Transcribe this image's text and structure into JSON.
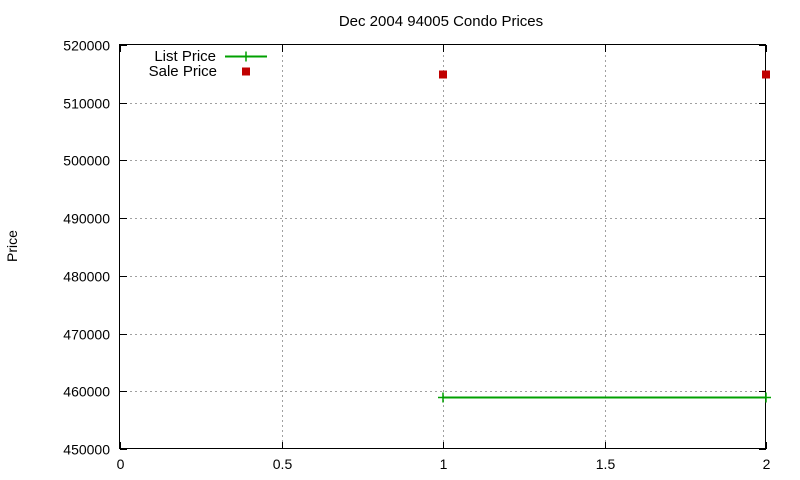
{
  "chart_data": {
    "type": "line",
    "title": "Dec 2004 94005 Condo Prices",
    "xlabel": "",
    "ylabel": "Price",
    "xlim": [
      0,
      2
    ],
    "ylim": [
      450000,
      520000
    ],
    "x_ticks": [
      "0",
      "0.5",
      "1",
      "1.5",
      "2"
    ],
    "x_tick_values": [
      0,
      0.5,
      1,
      1.5,
      2
    ],
    "y_ticks": [
      "450000",
      "460000",
      "470000",
      "480000",
      "490000",
      "500000",
      "510000",
      "520000"
    ],
    "y_tick_values": [
      450000,
      460000,
      470000,
      480000,
      490000,
      500000,
      510000,
      520000
    ],
    "grid": true,
    "legend_position": "top-left",
    "series": [
      {
        "name": "List Price",
        "style": "linespoints",
        "marker": "plus",
        "color": "#00a000",
        "x": [
          1,
          2
        ],
        "y": [
          459000,
          459000
        ]
      },
      {
        "name": "Sale Price",
        "style": "points",
        "marker": "square",
        "color": "#c00000",
        "x": [
          1,
          2
        ],
        "y": [
          515000,
          515000
        ]
      }
    ]
  }
}
